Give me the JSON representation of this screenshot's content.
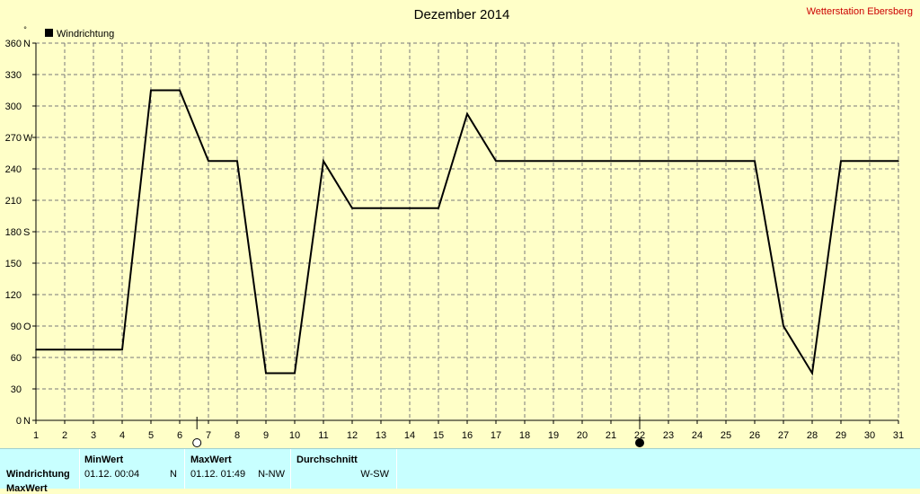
{
  "chart_data": {
    "type": "line",
    "title": "Dezember 2014",
    "station": "Wetterstation Ebersberg",
    "unit_label": "°",
    "ylim": [
      0,
      360
    ],
    "yticks": [
      {
        "value": 0,
        "label": "0",
        "dir": "N"
      },
      {
        "value": 30,
        "label": "30",
        "dir": ""
      },
      {
        "value": 60,
        "label": "60",
        "dir": ""
      },
      {
        "value": 90,
        "label": "90",
        "dir": "O"
      },
      {
        "value": 120,
        "label": "120",
        "dir": ""
      },
      {
        "value": 150,
        "label": "150",
        "dir": ""
      },
      {
        "value": 180,
        "label": "180",
        "dir": "S"
      },
      {
        "value": 210,
        "label": "210",
        "dir": ""
      },
      {
        "value": 240,
        "label": "240",
        "dir": ""
      },
      {
        "value": 270,
        "label": "270",
        "dir": "W"
      },
      {
        "value": 300,
        "label": "300",
        "dir": ""
      },
      {
        "value": 330,
        "label": "330",
        "dir": ""
      },
      {
        "value": 360,
        "label": "360",
        "dir": "N"
      }
    ],
    "xlim": [
      1,
      31
    ],
    "xticks": [
      "1",
      "2",
      "3",
      "4",
      "5",
      "6",
      "7",
      "8",
      "9",
      "10",
      "11",
      "12",
      "13",
      "14",
      "15",
      "16",
      "17",
      "18",
      "19",
      "20",
      "21",
      "22",
      "23",
      "24",
      "25",
      "26",
      "27",
      "28",
      "29",
      "30",
      "31"
    ],
    "grid": true,
    "legend": "top-left",
    "series": [
      {
        "name": "Windrichtung",
        "color": "#000000",
        "x": [
          1,
          2,
          3,
          4,
          5,
          6,
          7,
          8,
          9,
          10,
          11,
          12,
          13,
          14,
          15,
          16,
          17,
          18,
          19,
          20,
          21,
          22,
          23,
          24,
          25,
          26,
          27,
          28,
          29,
          30,
          31
        ],
        "y": [
          67.5,
          67.5,
          67.5,
          67.5,
          315,
          315,
          247.5,
          247.5,
          45,
          45,
          247.5,
          202.5,
          202.5,
          202.5,
          202.5,
          292.5,
          247.5,
          247.5,
          247.5,
          247.5,
          247.5,
          247.5,
          247.5,
          247.5,
          247.5,
          247.5,
          90,
          45,
          247.5,
          247.5,
          247.5
        ]
      }
    ],
    "moon_phases": [
      {
        "day": 6.6,
        "phase": "full"
      },
      {
        "day": 22,
        "phase": "new"
      }
    ]
  },
  "stats": {
    "min_header": "MinWert",
    "max_header": "MaxWert",
    "avg_header": "Durchschnitt",
    "row_label": "Windrichtung",
    "row2_label": "MaxWert",
    "min_time": "01.12.  00:04",
    "min_value": "N",
    "max_time": "01.12.  01:49",
    "max_value": "N-NW",
    "avg_value": "W-SW"
  },
  "colors": {
    "background": "#ffffc8",
    "station": "#cc0000",
    "stats_bg": "#c8ffff"
  }
}
